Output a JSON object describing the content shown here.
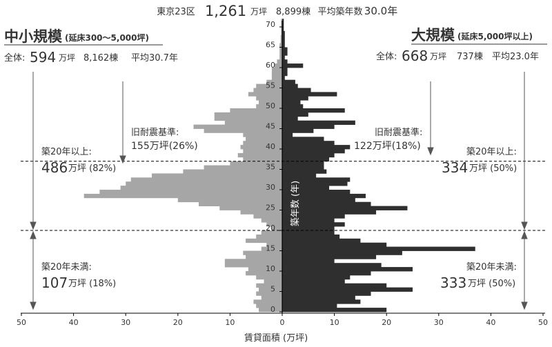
{
  "header": {
    "prefix": "東京23区",
    "total_area_value": "1,261",
    "total_area_unit": "万坪",
    "total_buildings": "8,899棟",
    "avg_age_label": "平均築年数",
    "avg_age_value": "30.0年"
  },
  "left_panel": {
    "title": "中小規模",
    "subtitle": "(延床300～5,000坪)",
    "summary_label": "全体:",
    "summary_area_value": "594",
    "summary_area_unit": "万坪",
    "summary_buildings": "8,162棟",
    "summary_avg": "平均30.7年",
    "old_quake_label": "旧耐震基準:",
    "old_quake_value": "155万坪(26%)",
    "over20_label": "築20年以上:",
    "over20_value": "486",
    "over20_unit": "万坪 (82%)",
    "under20_label": "築20年未満:",
    "under20_value": "107",
    "under20_unit": "万坪 (18%)"
  },
  "right_panel": {
    "title": "大規模",
    "subtitle": "(延床5,000坪以上)",
    "summary_label": "全体:",
    "summary_area_value": "668",
    "summary_area_unit": "万坪",
    "summary_buildings": "737棟",
    "summary_avg": "平均23.0年",
    "old_quake_label": "旧耐震基準:",
    "old_quake_value": "122万坪(18%)",
    "over20_label": "築20年以上:",
    "over20_value": "334",
    "over20_unit": "万坪 (50%)",
    "under20_label": "築20年未満:",
    "under20_value": "333",
    "under20_unit": "万坪 (50%)"
  },
  "colors": {
    "small": "#a6a6a6",
    "large": "#2f2f2f",
    "axis": "#000000",
    "text": "#333333"
  },
  "chart_data": {
    "type": "bar",
    "orientation": "horizontal-population-pyramid",
    "xlabel": "賃貸面積 (万坪)",
    "ylabel": "築年数 (年)",
    "xlim_left": [
      50,
      0
    ],
    "xlim_right": [
      0,
      50
    ],
    "x_ticks_left": [
      50,
      40,
      30,
      20,
      10,
      0
    ],
    "x_ticks_right": [
      10,
      20,
      30,
      40,
      50
    ],
    "ylim": [
      0,
      72
    ],
    "y_ticks": [
      0,
      5,
      10,
      15,
      20,
      25,
      30,
      35,
      40,
      45,
      50,
      55,
      60,
      65,
      70
    ],
    "reference_lines_years": [
      20,
      37
    ],
    "ages": [
      0,
      1,
      2,
      3,
      4,
      5,
      6,
      7,
      8,
      9,
      10,
      11,
      12,
      13,
      14,
      15,
      16,
      17,
      18,
      19,
      20,
      21,
      22,
      23,
      24,
      25,
      26,
      27,
      28,
      29,
      30,
      31,
      32,
      33,
      34,
      35,
      36,
      37,
      38,
      39,
      40,
      41,
      42,
      43,
      44,
      45,
      46,
      47,
      48,
      49,
      50,
      51,
      52,
      53,
      54,
      55,
      56,
      57,
      58,
      59,
      60,
      61,
      62,
      63,
      64,
      65,
      66,
      67,
      68,
      69,
      70,
      71
    ],
    "series": [
      {
        "name": "中小規模",
        "side": "left",
        "values": [
          4.5,
          5,
          5.5,
          4,
          5,
          4.5,
          5,
          3.5,
          5,
          7,
          6.5,
          11,
          11,
          7,
          7.5,
          4,
          3,
          7,
          5,
          4,
          2,
          3,
          4,
          5.5,
          8,
          12,
          16,
          20,
          38,
          35,
          31,
          30,
          29,
          25,
          19,
          15,
          10,
          7.5,
          8.5,
          7.5,
          8,
          7.5,
          7,
          7.5,
          15,
          17,
          11,
          13,
          13,
          10,
          5,
          4.5,
          5,
          6.5,
          5.5,
          5,
          3,
          2,
          2,
          2,
          1.5,
          1,
          0.5,
          0.5,
          0.5,
          0.5,
          0.3,
          0.3,
          0.2,
          0.2,
          0.2,
          0.2
        ]
      },
      {
        "name": "大規模",
        "side": "right",
        "values": [
          20,
          10.5,
          15,
          14,
          17,
          25,
          20,
          12,
          13,
          17,
          25,
          19,
          10,
          18,
          23,
          37,
          20,
          15,
          11,
          10,
          10,
          12,
          10,
          12,
          18,
          24,
          17,
          14,
          16,
          13,
          9,
          12.5,
          13,
          6.5,
          8.5,
          8,
          8,
          9,
          10,
          12,
          13,
          10,
          8,
          2,
          6,
          10,
          14,
          3,
          5,
          12,
          4,
          3.5,
          5,
          10.5,
          5.5,
          3,
          2.5,
          0.5,
          1,
          1,
          4,
          1,
          0.5,
          1,
          1,
          0.5,
          0.5,
          0.5,
          0.5,
          0.3,
          0.3,
          0.3
        ]
      }
    ]
  }
}
